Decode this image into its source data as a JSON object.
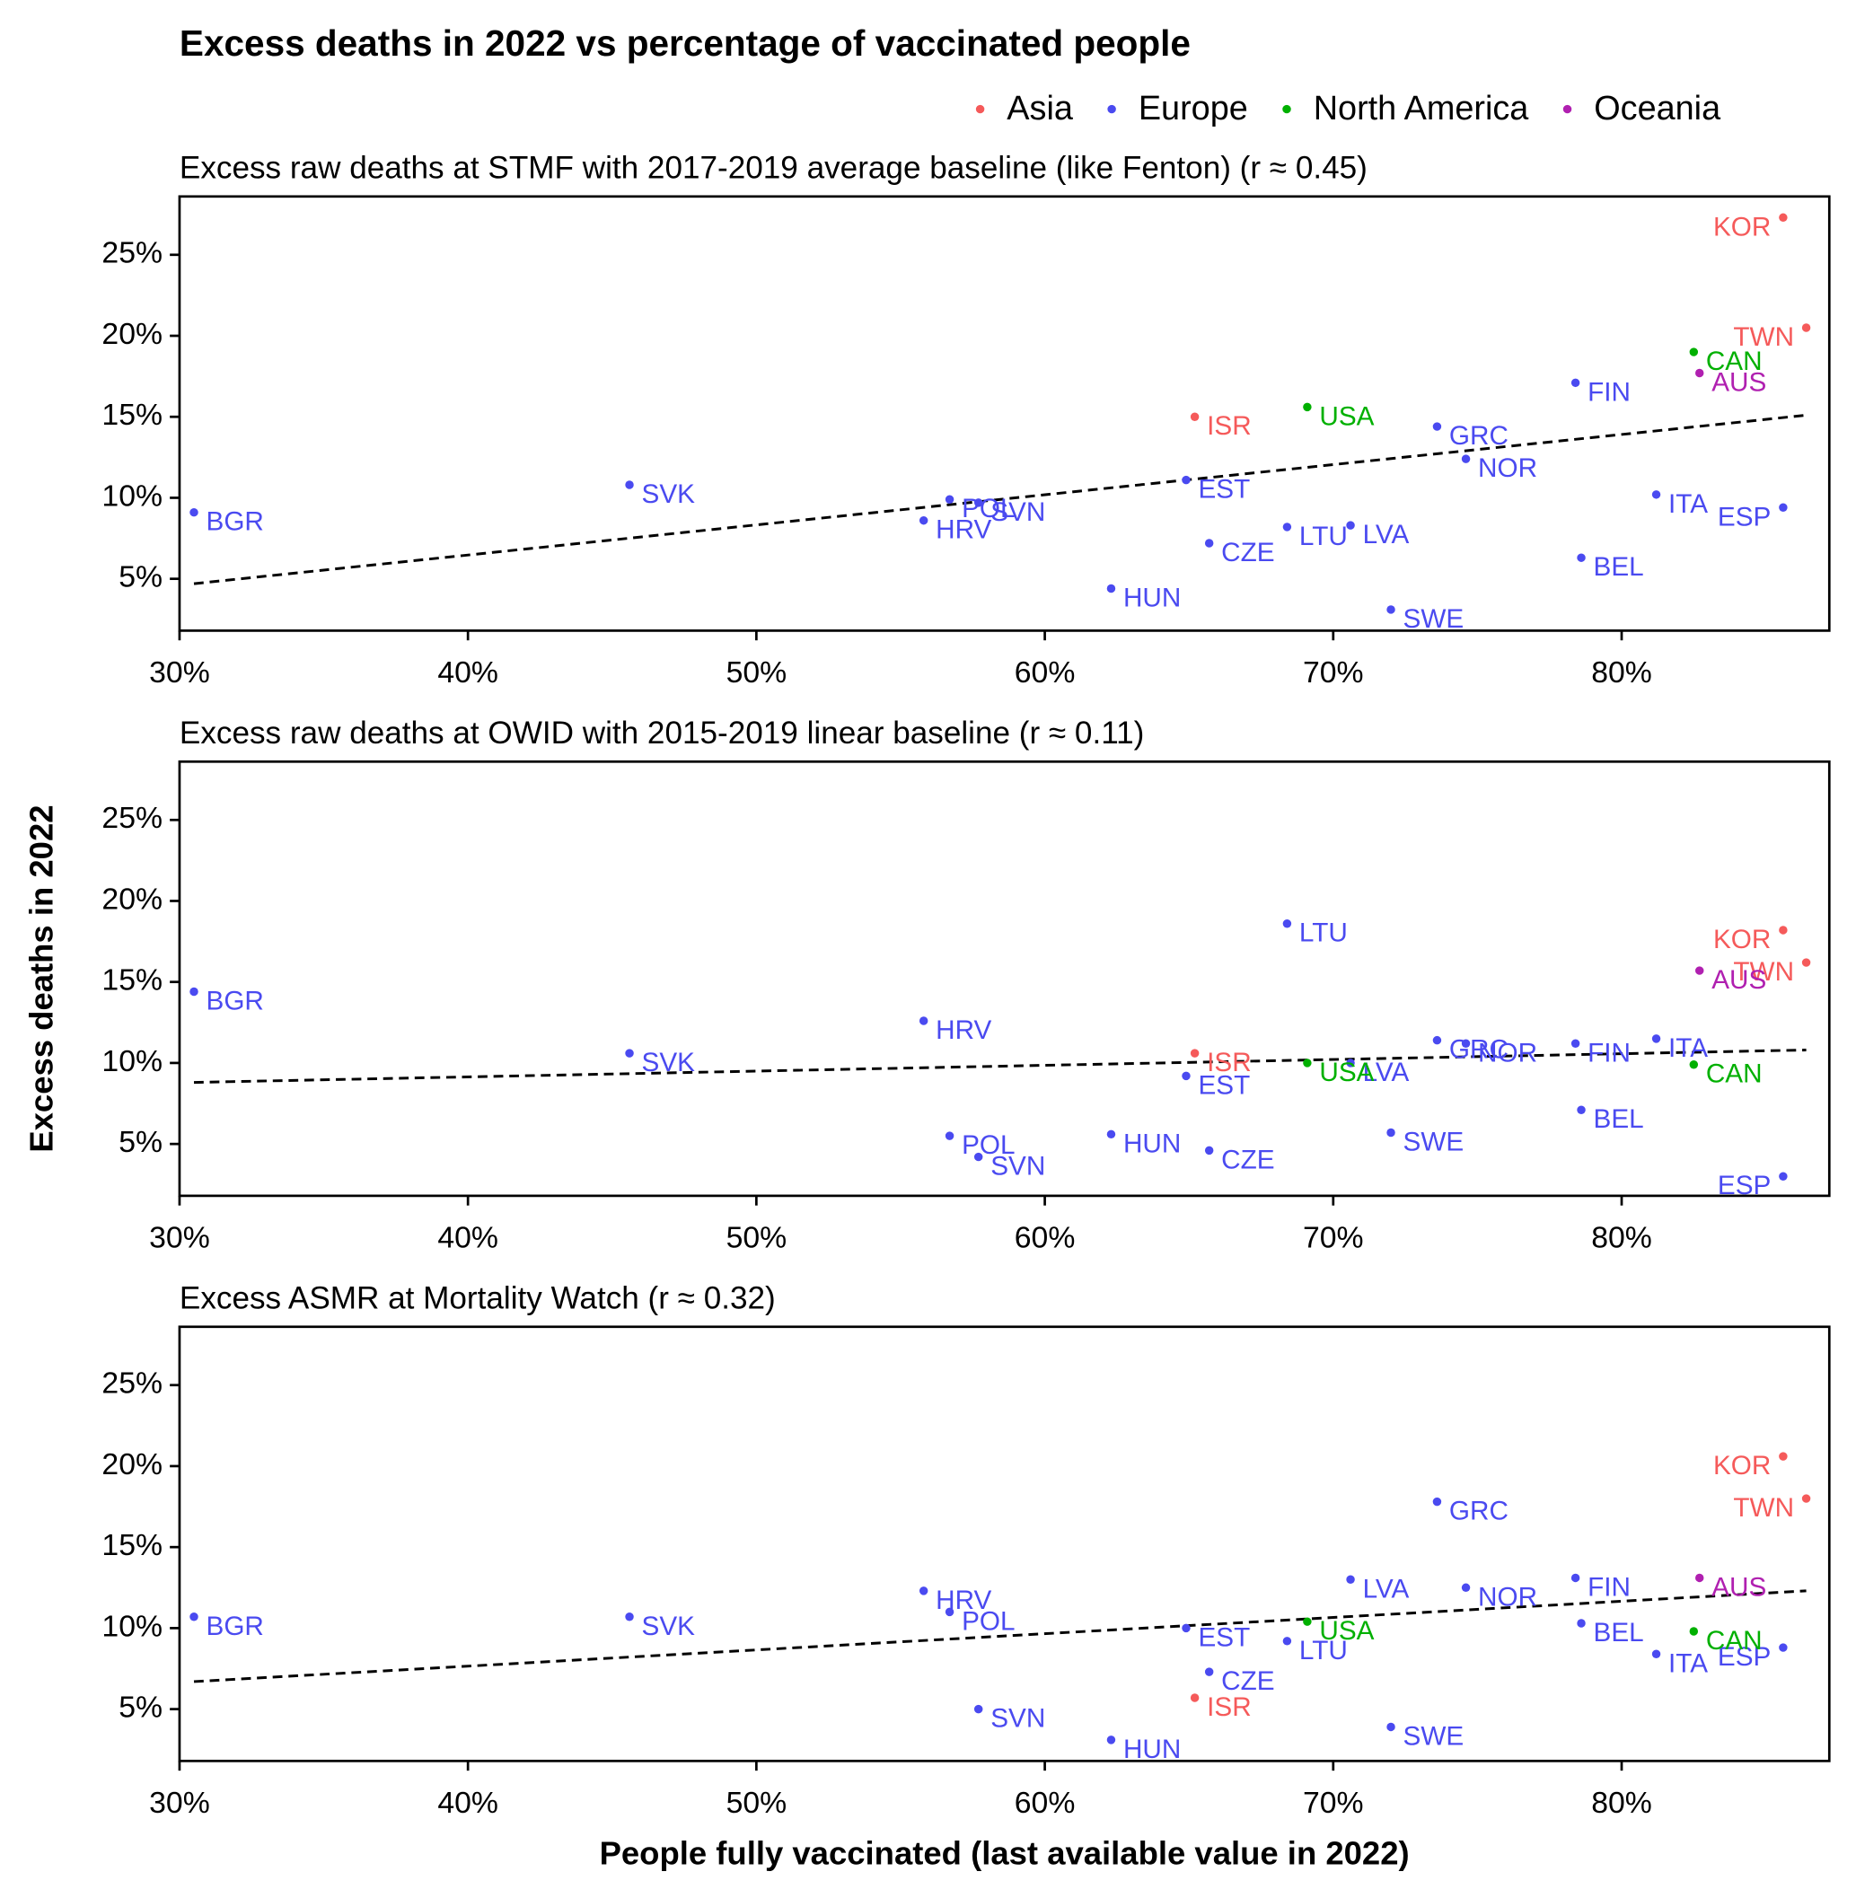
{
  "title": "Excess deaths in 2022 vs percentage of vaccinated people",
  "x_label": "People fully vaccinated (last available value in 2022)",
  "y_label": "Excess deaths in 2022",
  "chart_data": [
    {
      "type": "scatter",
      "subtitle": "Excess raw deaths at STMF with 2017-2019 average baseline (like Fenton) (r ≈ 0.45)",
      "xlim": [
        30,
        87.2
      ],
      "ylim": [
        1.8,
        28.6
      ],
      "xticks": [
        {
          "value": 30,
          "label": "30%"
        },
        {
          "value": 40,
          "label": "40%"
        },
        {
          "value": 50,
          "label": "50%"
        },
        {
          "value": 60,
          "label": "60%"
        },
        {
          "value": 70,
          "label": "70%"
        },
        {
          "value": 80,
          "label": "80%"
        }
      ],
      "yticks": [
        {
          "value": 5,
          "label": "5%"
        },
        {
          "value": 10,
          "label": "10%"
        },
        {
          "value": 15,
          "label": "15%"
        },
        {
          "value": 20,
          "label": "20%"
        },
        {
          "value": 25,
          "label": "25%"
        }
      ],
      "trend": {
        "x": [
          30.5,
          86.4
        ],
        "y": [
          4.7,
          15.1
        ]
      },
      "series": [
        {
          "name": "Asia",
          "color": "#f55a5a",
          "labels": [
            "ISR",
            "KOR",
            "TWN"
          ],
          "x": [
            65.2,
            85.6,
            86.4
          ],
          "values": [
            15.0,
            27.3,
            20.5
          ]
        },
        {
          "name": "Europe",
          "color": "#4a4af0",
          "labels": [
            "BGR",
            "SVK",
            "POL",
            "HRV",
            "SVN",
            "HUN",
            "EST",
            "CZE",
            "LTU",
            "LVA",
            "SWE",
            "GRC",
            "NOR",
            "FIN",
            "BEL",
            "ITA",
            "ESP"
          ],
          "x": [
            30.5,
            45.6,
            56.7,
            55.8,
            57.7,
            62.3,
            64.9,
            65.7,
            68.4,
            70.6,
            72.0,
            73.6,
            74.6,
            78.4,
            78.6,
            81.2,
            85.6
          ],
          "values": [
            9.1,
            10.8,
            9.9,
            8.6,
            9.7,
            4.4,
            11.1,
            7.2,
            8.2,
            8.3,
            3.1,
            14.4,
            12.4,
            17.1,
            6.3,
            10.2,
            9.4
          ]
        },
        {
          "name": "North America",
          "color": "#00b000",
          "labels": [
            "USA",
            "CAN"
          ],
          "x": [
            69.1,
            82.5
          ],
          "values": [
            15.6,
            19.0
          ]
        },
        {
          "name": "Oceania",
          "color": "#b020b0",
          "labels": [
            "AUS"
          ],
          "x": [
            82.7
          ],
          "values": [
            17.7
          ]
        }
      ]
    },
    {
      "type": "scatter",
      "subtitle": "Excess raw deaths at OWID with 2015-2019 linear baseline (r ≈ 0.11)",
      "xlim": [
        30,
        87.2
      ],
      "ylim": [
        1.8,
        28.6
      ],
      "xticks": [
        {
          "value": 30,
          "label": "30%"
        },
        {
          "value": 40,
          "label": "40%"
        },
        {
          "value": 50,
          "label": "50%"
        },
        {
          "value": 60,
          "label": "60%"
        },
        {
          "value": 70,
          "label": "70%"
        },
        {
          "value": 80,
          "label": "80%"
        }
      ],
      "yticks": [
        {
          "value": 5,
          "label": "5%"
        },
        {
          "value": 10,
          "label": "10%"
        },
        {
          "value": 15,
          "label": "15%"
        },
        {
          "value": 20,
          "label": "20%"
        },
        {
          "value": 25,
          "label": "25%"
        }
      ],
      "trend": {
        "x": [
          30.5,
          86.4
        ],
        "y": [
          8.8,
          10.8
        ]
      },
      "series": [
        {
          "name": "Asia",
          "color": "#f55a5a",
          "labels": [
            "ISR",
            "KOR",
            "TWN"
          ],
          "x": [
            65.2,
            85.6,
            86.4
          ],
          "values": [
            10.6,
            18.2,
            16.2
          ]
        },
        {
          "name": "Europe",
          "color": "#4a4af0",
          "labels": [
            "BGR",
            "SVK",
            "POL",
            "HRV",
            "SVN",
            "HUN",
            "EST",
            "CZE",
            "LTU",
            "LVA",
            "SWE",
            "GRC",
            "NOR",
            "FIN",
            "BEL",
            "ITA",
            "ESP"
          ],
          "x": [
            30.5,
            45.6,
            56.7,
            55.8,
            57.7,
            62.3,
            64.9,
            65.7,
            68.4,
            70.6,
            72.0,
            73.6,
            74.6,
            78.4,
            78.6,
            81.2,
            85.6
          ],
          "values": [
            14.4,
            10.6,
            5.5,
            12.6,
            4.2,
            5.6,
            9.2,
            4.6,
            18.6,
            10.0,
            5.7,
            11.4,
            11.2,
            11.2,
            7.1,
            11.5,
            3.0
          ]
        },
        {
          "name": "North America",
          "color": "#00b000",
          "labels": [
            "USA",
            "CAN"
          ],
          "x": [
            69.1,
            82.5
          ],
          "values": [
            10.0,
            9.9
          ]
        },
        {
          "name": "Oceania",
          "color": "#b020b0",
          "labels": [
            "AUS"
          ],
          "x": [
            82.7
          ],
          "values": [
            15.7
          ]
        }
      ]
    },
    {
      "type": "scatter",
      "subtitle": "Excess ASMR at Mortality Watch (r ≈ 0.32)",
      "xlim": [
        30,
        87.2
      ],
      "ylim": [
        1.8,
        28.6
      ],
      "xticks": [
        {
          "value": 30,
          "label": "30%"
        },
        {
          "value": 40,
          "label": "40%"
        },
        {
          "value": 50,
          "label": "50%"
        },
        {
          "value": 60,
          "label": "60%"
        },
        {
          "value": 70,
          "label": "70%"
        },
        {
          "value": 80,
          "label": "80%"
        }
      ],
      "yticks": [
        {
          "value": 5,
          "label": "5%"
        },
        {
          "value": 10,
          "label": "10%"
        },
        {
          "value": 15,
          "label": "15%"
        },
        {
          "value": 20,
          "label": "20%"
        },
        {
          "value": 25,
          "label": "25%"
        }
      ],
      "trend": {
        "x": [
          30.5,
          86.4
        ],
        "y": [
          6.7,
          12.3
        ]
      },
      "series": [
        {
          "name": "Asia",
          "color": "#f55a5a",
          "labels": [
            "ISR",
            "KOR",
            "TWN"
          ],
          "x": [
            65.2,
            85.6,
            86.4
          ],
          "values": [
            5.7,
            20.6,
            18.0
          ]
        },
        {
          "name": "Europe",
          "color": "#4a4af0",
          "labels": [
            "BGR",
            "SVK",
            "POL",
            "HRV",
            "SVN",
            "HUN",
            "EST",
            "CZE",
            "LTU",
            "LVA",
            "SWE",
            "GRC",
            "NOR",
            "FIN",
            "BEL",
            "ITA",
            "ESP"
          ],
          "x": [
            30.5,
            45.6,
            56.7,
            55.8,
            57.7,
            62.3,
            64.9,
            65.7,
            68.4,
            70.6,
            72.0,
            73.6,
            74.6,
            78.4,
            78.6,
            81.2,
            85.6
          ],
          "values": [
            10.7,
            10.7,
            11.0,
            12.3,
            5.0,
            3.1,
            10.0,
            7.3,
            9.2,
            13.0,
            3.9,
            17.8,
            12.5,
            13.1,
            10.3,
            8.4,
            8.8
          ]
        },
        {
          "name": "North America",
          "color": "#00b000",
          "labels": [
            "USA",
            "CAN"
          ],
          "x": [
            69.1,
            82.5
          ],
          "values": [
            10.4,
            9.8
          ]
        },
        {
          "name": "Oceania",
          "color": "#b020b0",
          "labels": [
            "AUS"
          ],
          "x": [
            82.7
          ],
          "values": [
            13.1
          ]
        }
      ]
    }
  ]
}
